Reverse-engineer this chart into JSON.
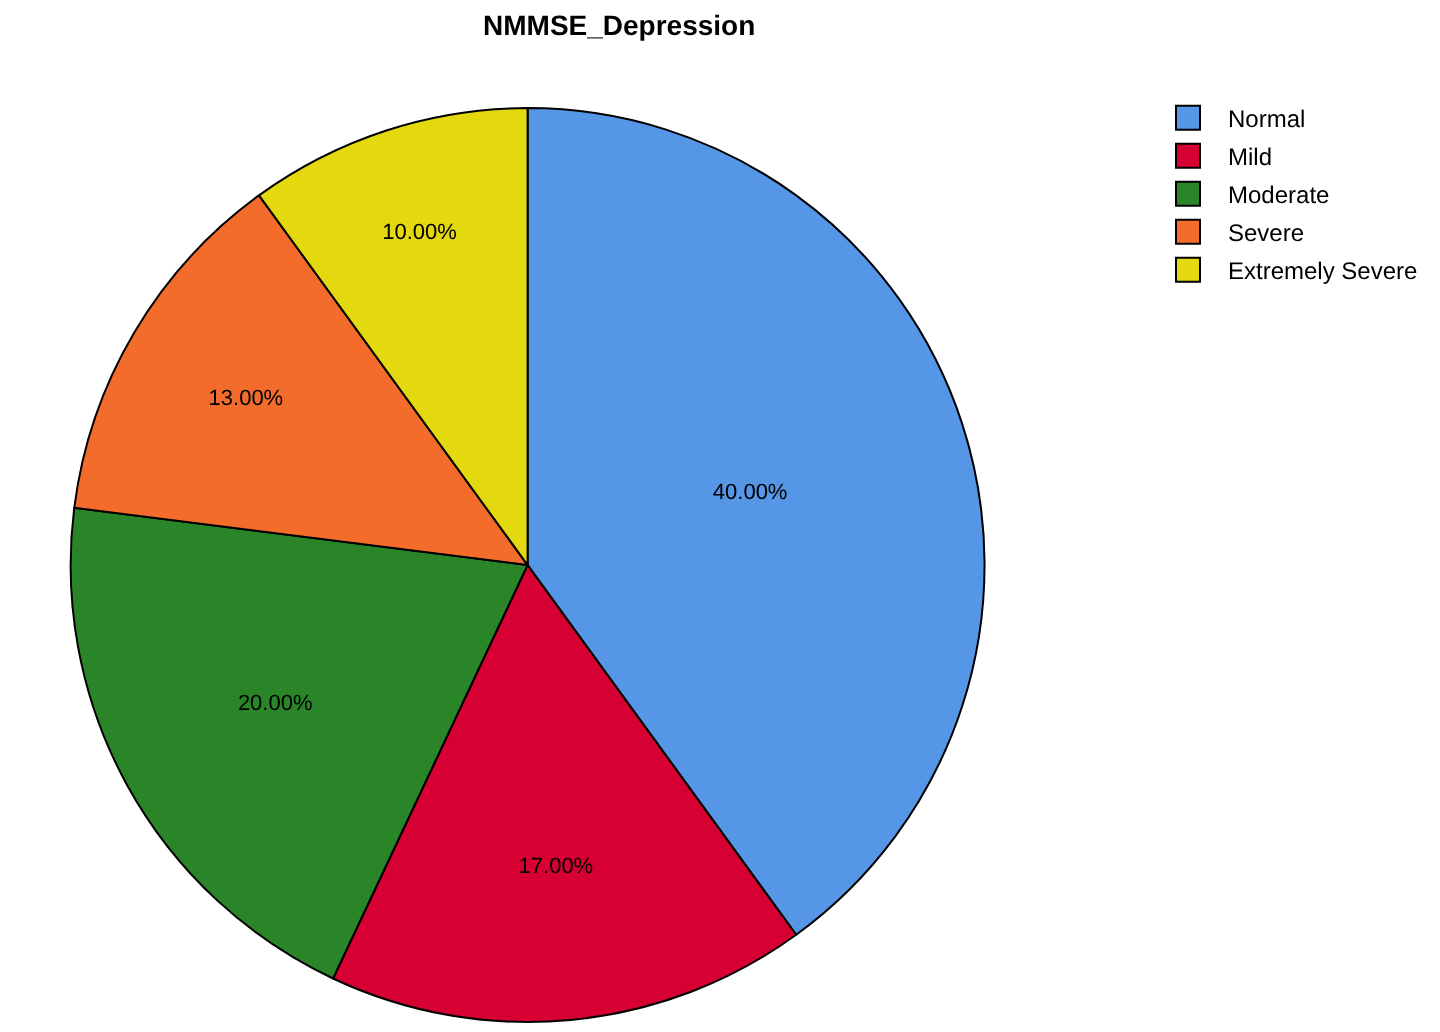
{
  "chart_data": {
    "type": "pie",
    "title": "NMMSE_Depression",
    "categories": [
      "Normal",
      "Mild",
      "Moderate",
      "Severe",
      "Extremely Severe"
    ],
    "values": [
      40,
      17,
      20,
      13,
      10
    ],
    "value_labels": [
      "40.00%",
      "17.00%",
      "20.00%",
      "13.00%",
      "10.00%"
    ],
    "colors": [
      "#5596e6",
      "#d60032",
      "#2a8529",
      "#f36c2c",
      "#e4d80f"
    ],
    "legend": "top right"
  }
}
